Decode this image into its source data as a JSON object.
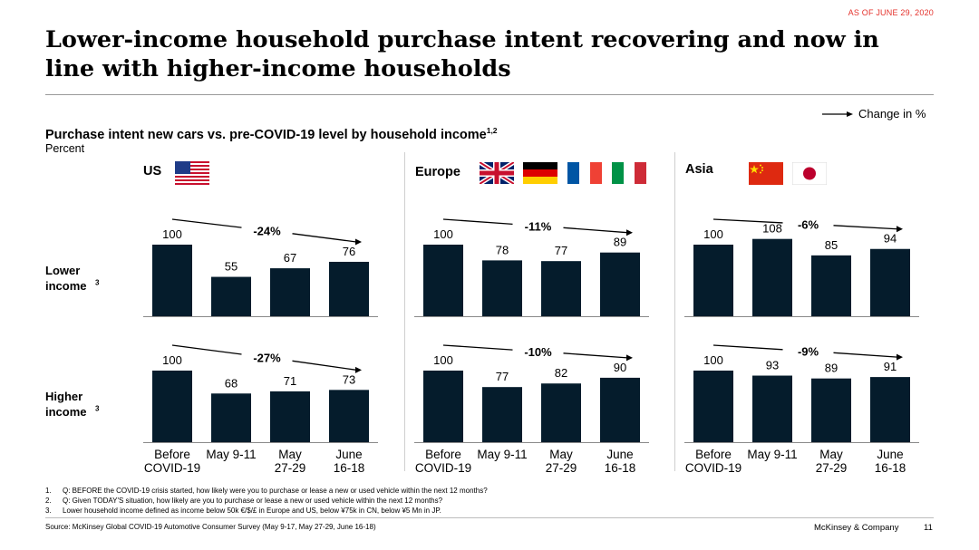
{
  "as_of": "AS OF JUNE 29, 2020",
  "title": "Lower-income household purchase intent recovering and now in line with higher-income households",
  "change_legend": "Change in %",
  "subtitle": "Purchase intent new cars vs. pre-COVID-19 level by household income",
  "subtitle_sup": "1,2",
  "unit": "Percent",
  "row_labels": [
    {
      "text": "Lower income",
      "sup": "3"
    },
    {
      "text": "Higher income",
      "sup": "3"
    }
  ],
  "regions": [
    {
      "name": "US",
      "flags": [
        "us-flag-icon"
      ]
    },
    {
      "name": "Europe",
      "flags": [
        "uk-flag-icon",
        "germany-flag-icon",
        "france-flag-icon",
        "italy-flag-icon"
      ]
    },
    {
      "name": "Asia",
      "flags": [
        "china-flag-icon",
        "japan-flag-icon"
      ]
    }
  ],
  "colors": {
    "bar": "#051c2c",
    "accent": "#e4312b",
    "separator": "#cfcfcf"
  },
  "chart_data": {
    "type": "bar",
    "categories": [
      [
        "Before",
        "COVID-19"
      ],
      [
        "May 9-11",
        ""
      ],
      [
        "May",
        "27-29"
      ],
      [
        "June",
        "16-18"
      ]
    ],
    "ylim": [
      0,
      110
    ],
    "panels": [
      {
        "region": "US",
        "income": "Lower income",
        "values": [
          100,
          55,
          67,
          76
        ],
        "change": "-24%"
      },
      {
        "region": "Europe",
        "income": "Lower income",
        "values": [
          100,
          78,
          77,
          89
        ],
        "change": "-11%"
      },
      {
        "region": "Asia",
        "income": "Lower income",
        "values": [
          100,
          108,
          85,
          94
        ],
        "change": "-6%"
      },
      {
        "region": "US",
        "income": "Higher income",
        "values": [
          100,
          68,
          71,
          73
        ],
        "change": "-27%"
      },
      {
        "region": "Europe",
        "income": "Higher income",
        "values": [
          100,
          77,
          82,
          90
        ],
        "change": "-10%"
      },
      {
        "region": "Asia",
        "income": "Higher income",
        "values": [
          100,
          93,
          89,
          91
        ],
        "change": "-9%"
      }
    ]
  },
  "footnotes": [
    {
      "num": "1.",
      "text": "Q: BEFORE the COVID-19 crisis started, how likely were you to purchase or lease a new or used vehicle within the next 12 months?"
    },
    {
      "num": "2.",
      "text": "Q: Given TODAY'S situation, how likely are you to purchase or lease a new or used vehicle within the next 12 months?"
    },
    {
      "num": "3.",
      "text": "Lower household income defined as income below 50k €/$/£ in Europe and US, below ¥75k in CN, below ¥5 Mn in JP."
    }
  ],
  "source": "Source: McKinsey Global COVID-19 Automotive Consumer Survey (May 9-17, May 27-29, June 16-18)",
  "brand": "McKinsey & Company",
  "page_number": "11"
}
